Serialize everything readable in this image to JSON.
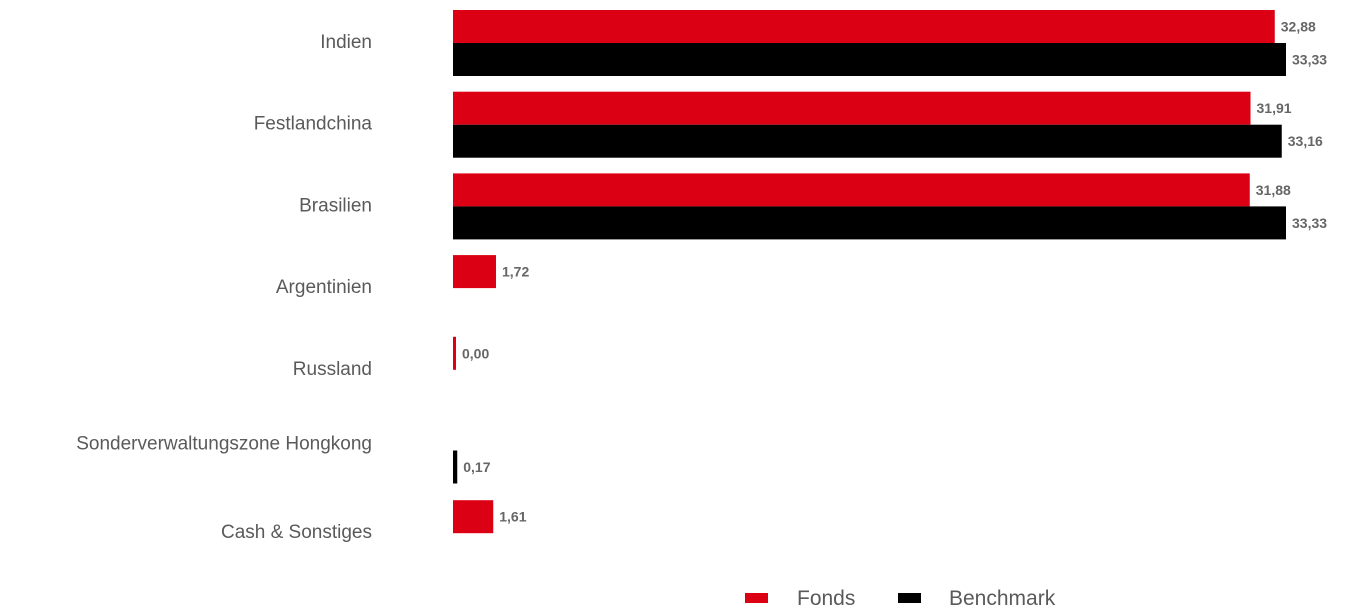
{
  "chart_data": {
    "type": "bar",
    "orientation": "horizontal",
    "categories": [
      "Indien",
      "Festlandchina",
      "Brasilien",
      "Argentinien",
      "Russland",
      "Sonderverwaltungszone Hongkong",
      "Cash & Sonstiges"
    ],
    "series": [
      {
        "name": "Fonds",
        "color": "#dc0014",
        "values": [
          32.88,
          31.91,
          31.88,
          1.72,
          0.0,
          null,
          1.61
        ],
        "labels": [
          "32,88",
          "31,91",
          "31,88",
          "1,72",
          "0,00",
          null,
          "1,61"
        ]
      },
      {
        "name": "Benchmark",
        "color": "#000000",
        "values": [
          33.33,
          33.16,
          33.33,
          null,
          null,
          0.17,
          null
        ],
        "labels": [
          "33,33",
          "33,16",
          "33,33",
          null,
          null,
          "0,17",
          null
        ]
      }
    ],
    "xlim": [
      0,
      33.33
    ],
    "grid": false,
    "legend_position": "bottom"
  }
}
